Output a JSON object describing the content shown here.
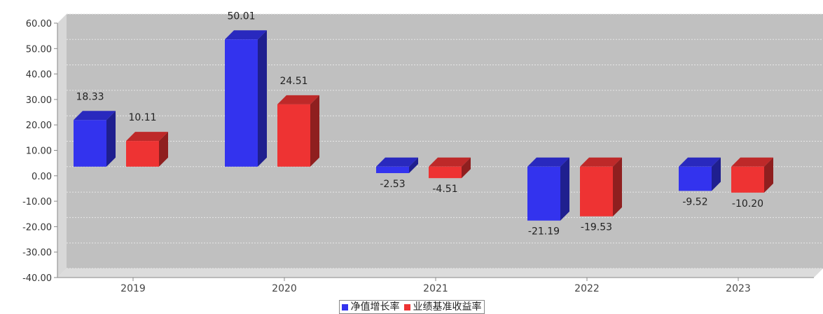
{
  "chart_data": {
    "type": "bar",
    "categories": [
      "2019",
      "2020",
      "2021",
      "2022",
      "2023"
    ],
    "series": [
      {
        "name": "净值增长率",
        "values": [
          18.33,
          50.01,
          -2.53,
          -21.19,
          -9.52
        ],
        "color": "#3333ee",
        "labels": [
          "18.33",
          "50.01",
          "-2.53",
          "-21.19",
          "-9.52"
        ]
      },
      {
        "name": "业绩基准收益率",
        "values": [
          10.11,
          24.51,
          -4.51,
          -19.53,
          -10.2
        ],
        "color": "#ee3333",
        "labels": [
          "10.11",
          "24.51",
          "-4.51",
          "-19.53",
          "-10.20"
        ]
      }
    ],
    "yticks": [
      "60.00",
      "50.00",
      "40.00",
      "30.00",
      "20.00",
      "10.00",
      "0.00",
      "-10.00",
      "-20.00",
      "-30.00",
      "-40.00"
    ],
    "ylim": [
      -40,
      60
    ],
    "grid": true,
    "legend_position": "bottom-center",
    "plot_background": "#c0c0c0"
  }
}
